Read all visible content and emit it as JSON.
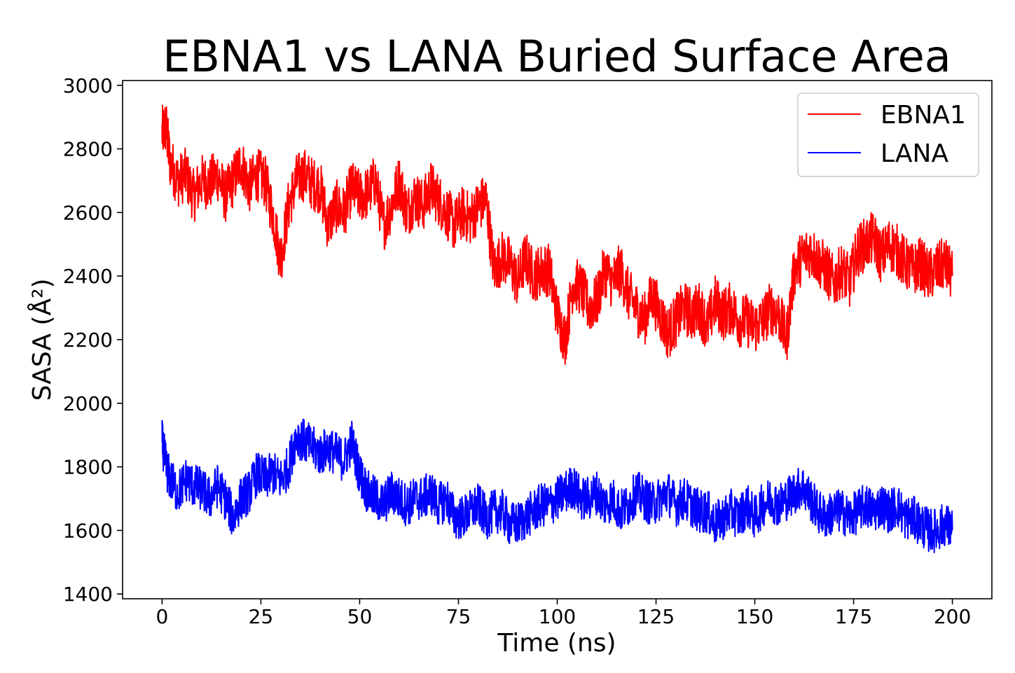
{
  "chart_data": {
    "type": "line",
    "title": "EBNA1 vs LANA Buried Surface Area",
    "xlabel": "Time (ns)",
    "ylabel": "SASA (Å²)",
    "xlim": [
      -10,
      210
    ],
    "ylim": [
      1385,
      3015
    ],
    "xticks": [
      0,
      25,
      50,
      75,
      100,
      125,
      150,
      175,
      200
    ],
    "yticks": [
      1400,
      1600,
      1800,
      2000,
      2200,
      2400,
      2600,
      2800,
      3000
    ],
    "grid": false,
    "legend": "top-right",
    "series": [
      {
        "name": "EBNA1",
        "color": "#ff0000",
        "x": [
          0,
          1,
          2,
          4,
          6,
          8,
          10,
          12,
          14,
          16,
          18,
          20,
          22,
          24,
          26,
          28,
          30,
          32,
          34,
          36,
          38,
          40,
          42,
          44,
          46,
          48,
          50,
          52,
          54,
          56,
          58,
          60,
          62,
          64,
          66,
          68,
          70,
          72,
          74,
          76,
          78,
          80,
          82,
          84,
          86,
          88,
          90,
          92,
          94,
          96,
          98,
          100,
          102,
          104,
          106,
          108,
          110,
          112,
          114,
          116,
          118,
          120,
          122,
          124,
          126,
          128,
          130,
          132,
          134,
          136,
          138,
          140,
          142,
          144,
          146,
          148,
          150,
          152,
          154,
          156,
          158,
          160,
          162,
          164,
          166,
          168,
          170,
          172,
          174,
          176,
          178,
          180,
          182,
          184,
          186,
          188,
          190,
          192,
          194,
          196,
          198,
          200
        ],
        "values": [
          2850,
          2870,
          2760,
          2700,
          2720,
          2650,
          2700,
          2690,
          2720,
          2650,
          2700,
          2760,
          2680,
          2720,
          2700,
          2600,
          2450,
          2620,
          2700,
          2720,
          2690,
          2680,
          2560,
          2620,
          2600,
          2680,
          2650,
          2660,
          2700,
          2560,
          2620,
          2700,
          2600,
          2650,
          2620,
          2680,
          2640,
          2600,
          2560,
          2600,
          2580,
          2620,
          2640,
          2420,
          2460,
          2440,
          2380,
          2460,
          2400,
          2420,
          2420,
          2280,
          2200,
          2380,
          2360,
          2300,
          2320,
          2420,
          2380,
          2420,
          2340,
          2300,
          2260,
          2340,
          2280,
          2220,
          2260,
          2300,
          2280,
          2300,
          2240,
          2320,
          2280,
          2300,
          2260,
          2260,
          2240,
          2260,
          2300,
          2280,
          2200,
          2420,
          2460,
          2480,
          2450,
          2420,
          2380,
          2420,
          2380,
          2480,
          2500,
          2520,
          2460,
          2500,
          2480,
          2440,
          2420,
          2440,
          2400,
          2420,
          2440,
          2400
        ]
      },
      {
        "name": "LANA",
        "color": "#0000ff",
        "x": [
          0,
          1,
          2,
          4,
          6,
          8,
          10,
          12,
          14,
          16,
          18,
          20,
          22,
          24,
          26,
          28,
          30,
          32,
          34,
          36,
          38,
          40,
          42,
          44,
          46,
          48,
          50,
          52,
          54,
          56,
          58,
          60,
          62,
          64,
          66,
          68,
          70,
          72,
          74,
          76,
          78,
          80,
          82,
          84,
          86,
          88,
          90,
          92,
          94,
          96,
          98,
          100,
          102,
          104,
          106,
          108,
          110,
          112,
          114,
          116,
          118,
          120,
          122,
          124,
          126,
          128,
          130,
          132,
          134,
          136,
          138,
          140,
          142,
          144,
          146,
          148,
          150,
          152,
          154,
          156,
          158,
          160,
          162,
          164,
          166,
          168,
          170,
          172,
          174,
          176,
          178,
          180,
          182,
          184,
          186,
          188,
          190,
          192,
          194,
          196,
          198,
          200
        ],
        "values": [
          1880,
          1800,
          1760,
          1720,
          1760,
          1740,
          1730,
          1700,
          1740,
          1700,
          1640,
          1700,
          1720,
          1780,
          1760,
          1780,
          1760,
          1800,
          1900,
          1880,
          1860,
          1840,
          1860,
          1840,
          1820,
          1880,
          1780,
          1720,
          1700,
          1680,
          1720,
          1700,
          1680,
          1700,
          1700,
          1720,
          1680,
          1700,
          1640,
          1640,
          1660,
          1680,
          1640,
          1660,
          1660,
          1620,
          1620,
          1640,
          1660,
          1680,
          1680,
          1700,
          1720,
          1740,
          1700,
          1700,
          1720,
          1680,
          1700,
          1660,
          1680,
          1720,
          1700,
          1680,
          1700,
          1720,
          1680,
          1700,
          1680,
          1660,
          1660,
          1620,
          1640,
          1660,
          1640,
          1680,
          1640,
          1680,
          1700,
          1680,
          1700,
          1720,
          1740,
          1700,
          1660,
          1640,
          1660,
          1660,
          1640,
          1660,
          1680,
          1660,
          1680,
          1660,
          1680,
          1640,
          1640,
          1620,
          1600,
          1600,
          1620,
          1600
        ]
      }
    ]
  }
}
